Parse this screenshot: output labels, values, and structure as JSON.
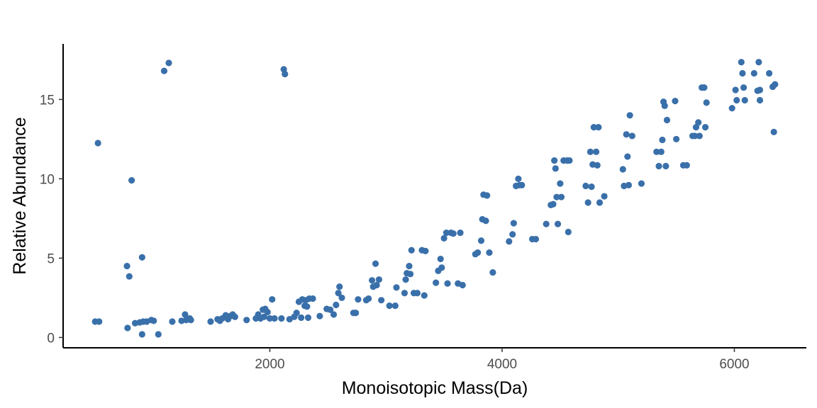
{
  "chart_data": {
    "type": "scatter",
    "title": "",
    "xlabel": "Monoisotopic Mass(Da)",
    "ylabel": "Relative Abundance",
    "xlim": [
      220,
      6620
    ],
    "ylim": [
      -0.65,
      18.5
    ],
    "xticks": [
      2000,
      4000,
      6000
    ],
    "yticks": [
      0,
      5,
      10,
      15
    ],
    "grid": false,
    "legend": "none",
    "point_color": "#3a70aa",
    "series": [
      {
        "points": [
          [
            496,
            1.0
          ],
          [
            530,
            1.0
          ],
          [
            520,
            12.25
          ],
          [
            770,
            4.5
          ],
          [
            790,
            3.85
          ],
          [
            810,
            9.9
          ],
          [
            775,
            0.6
          ],
          [
            840,
            0.9
          ],
          [
            880,
            0.95
          ],
          [
            900,
            5.05
          ],
          [
            910,
            1.0
          ],
          [
            900,
            0.2
          ],
          [
            940,
            1.0
          ],
          [
            980,
            1.1
          ],
          [
            1000,
            1.05
          ],
          [
            1040,
            0.2
          ],
          [
            1090,
            16.8
          ],
          [
            1130,
            17.3
          ],
          [
            1160,
            1.0
          ],
          [
            1240,
            1.05
          ],
          [
            1270,
            1.45
          ],
          [
            1280,
            1.1
          ],
          [
            1310,
            1.2
          ],
          [
            1320,
            1.1
          ],
          [
            1490,
            1.0
          ],
          [
            1550,
            1.15
          ],
          [
            1570,
            1.05
          ],
          [
            1590,
            1.2
          ],
          [
            1620,
            1.4
          ],
          [
            1640,
            1.15
          ],
          [
            1660,
            1.35
          ],
          [
            1680,
            1.45
          ],
          [
            1700,
            1.3
          ],
          [
            1800,
            1.1
          ],
          [
            1880,
            1.2
          ],
          [
            1900,
            1.45
          ],
          [
            1920,
            1.2
          ],
          [
            1940,
            1.75
          ],
          [
            1950,
            1.3
          ],
          [
            1960,
            1.8
          ],
          [
            1980,
            1.6
          ],
          [
            2000,
            1.2
          ],
          [
            2020,
            2.4
          ],
          [
            2040,
            1.2
          ],
          [
            2120,
            16.9
          ],
          [
            2130,
            16.6
          ],
          [
            2100,
            1.2
          ],
          [
            2170,
            1.15
          ],
          [
            2210,
            1.3
          ],
          [
            2230,
            1.55
          ],
          [
            2250,
            2.25
          ],
          [
            2270,
            1.25
          ],
          [
            2280,
            2.4
          ],
          [
            2300,
            2.0
          ],
          [
            2310,
            2.35
          ],
          [
            2320,
            1.95
          ],
          [
            2330,
            1.25
          ],
          [
            2340,
            2.45
          ],
          [
            2370,
            2.45
          ],
          [
            2430,
            1.35
          ],
          [
            2490,
            1.8
          ],
          [
            2520,
            1.75
          ],
          [
            2550,
            1.45
          ],
          [
            2570,
            2.05
          ],
          [
            2590,
            2.8
          ],
          [
            2600,
            3.2
          ],
          [
            2620,
            2.5
          ],
          [
            2720,
            1.55
          ],
          [
            2740,
            1.55
          ],
          [
            2760,
            2.4
          ],
          [
            2830,
            2.35
          ],
          [
            2850,
            2.45
          ],
          [
            2880,
            3.6
          ],
          [
            2890,
            3.2
          ],
          [
            2910,
            4.65
          ],
          [
            2920,
            3.3
          ],
          [
            2940,
            3.65
          ],
          [
            2960,
            2.35
          ],
          [
            3030,
            2.0
          ],
          [
            3080,
            2.0
          ],
          [
            3090,
            3.15
          ],
          [
            3160,
            2.8
          ],
          [
            3170,
            3.65
          ],
          [
            3180,
            4.05
          ],
          [
            3200,
            4.5
          ],
          [
            3210,
            4.0
          ],
          [
            3220,
            5.5
          ],
          [
            3240,
            2.8
          ],
          [
            3270,
            2.8
          ],
          [
            3310,
            5.5
          ],
          [
            3330,
            2.65
          ],
          [
            3340,
            5.45
          ],
          [
            3430,
            3.45
          ],
          [
            3450,
            4.2
          ],
          [
            3470,
            4.95
          ],
          [
            3480,
            4.4
          ],
          [
            3500,
            6.25
          ],
          [
            3520,
            6.6
          ],
          [
            3530,
            3.4
          ],
          [
            3560,
            6.6
          ],
          [
            3580,
            6.55
          ],
          [
            3620,
            3.4
          ],
          [
            3640,
            6.6
          ],
          [
            3660,
            3.3
          ],
          [
            3770,
            5.25
          ],
          [
            3790,
            5.35
          ],
          [
            3820,
            6.1
          ],
          [
            3830,
            7.45
          ],
          [
            3840,
            9.0
          ],
          [
            3860,
            7.35
          ],
          [
            3870,
            8.95
          ],
          [
            3890,
            5.35
          ],
          [
            3920,
            4.1
          ],
          [
            4060,
            6.05
          ],
          [
            4090,
            6.5
          ],
          [
            4100,
            7.2
          ],
          [
            4120,
            9.55
          ],
          [
            4140,
            10.0
          ],
          [
            4150,
            9.6
          ],
          [
            4170,
            9.6
          ],
          [
            4260,
            6.2
          ],
          [
            4290,
            6.2
          ],
          [
            4380,
            7.15
          ],
          [
            4420,
            8.35
          ],
          [
            4440,
            8.4
          ],
          [
            4450,
            11.15
          ],
          [
            4460,
            10.65
          ],
          [
            4470,
            8.85
          ],
          [
            4480,
            7.15
          ],
          [
            4500,
            9.7
          ],
          [
            4510,
            8.85
          ],
          [
            4530,
            11.15
          ],
          [
            4560,
            11.15
          ],
          [
            4570,
            6.65
          ],
          [
            4580,
            11.15
          ],
          [
            4720,
            9.55
          ],
          [
            4740,
            8.5
          ],
          [
            4760,
            11.7
          ],
          [
            4770,
            9.5
          ],
          [
            4780,
            10.9
          ],
          [
            4790,
            13.25
          ],
          [
            4810,
            11.7
          ],
          [
            4820,
            10.85
          ],
          [
            4830,
            13.25
          ],
          [
            4840,
            8.5
          ],
          [
            4880,
            8.9
          ],
          [
            5040,
            10.6
          ],
          [
            5050,
            9.55
          ],
          [
            5070,
            12.8
          ],
          [
            5080,
            11.4
          ],
          [
            5090,
            9.6
          ],
          [
            5100,
            14.0
          ],
          [
            5120,
            12.7
          ],
          [
            5200,
            9.7
          ],
          [
            5330,
            11.7
          ],
          [
            5350,
            10.8
          ],
          [
            5370,
            11.7
          ],
          [
            5380,
            12.45
          ],
          [
            5390,
            14.85
          ],
          [
            5400,
            14.6
          ],
          [
            5410,
            10.8
          ],
          [
            5420,
            13.7
          ],
          [
            5490,
            14.9
          ],
          [
            5500,
            12.5
          ],
          [
            5560,
            10.85
          ],
          [
            5590,
            10.85
          ],
          [
            5640,
            12.7
          ],
          [
            5660,
            12.7
          ],
          [
            5670,
            13.25
          ],
          [
            5690,
            13.55
          ],
          [
            5700,
            12.7
          ],
          [
            5720,
            15.75
          ],
          [
            5740,
            15.75
          ],
          [
            5750,
            13.25
          ],
          [
            5760,
            14.8
          ],
          [
            5980,
            14.45
          ],
          [
            6010,
            15.6
          ],
          [
            6020,
            14.95
          ],
          [
            6060,
            17.35
          ],
          [
            6070,
            16.65
          ],
          [
            6080,
            15.75
          ],
          [
            6090,
            14.95
          ],
          [
            6170,
            16.65
          ],
          [
            6200,
            15.55
          ],
          [
            6210,
            17.35
          ],
          [
            6220,
            14.95
          ],
          [
            6220,
            15.6
          ],
          [
            6300,
            16.65
          ],
          [
            6330,
            15.8
          ],
          [
            6340,
            12.95
          ],
          [
            6350,
            15.95
          ]
        ]
      }
    ]
  }
}
